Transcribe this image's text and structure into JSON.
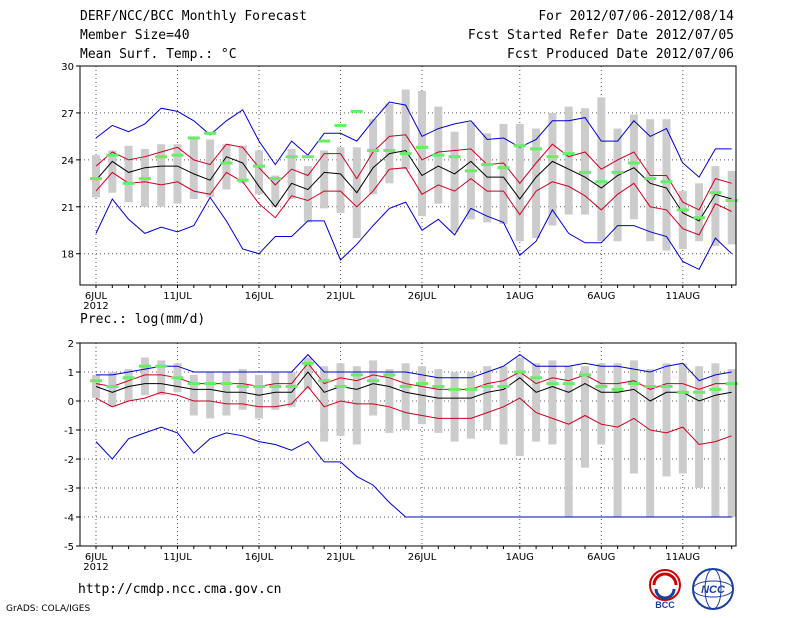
{
  "header": {
    "title": "DERF/NCC/BCC Monthly Forecast",
    "member_size": "Member Size=40",
    "variable1": "Mean Surf. Temp.: °C",
    "period": "For 2012/07/06-2012/08/14",
    "fcst_started": "Fcst Started Refer Date 2012/07/05",
    "fcst_produced": "Fcst Produced Date 2012/07/06"
  },
  "footer": {
    "url": "http://cmdp.ncc.cma.gov.cn",
    "credit": "GrADS: COLA/IGES",
    "logo_bcc": "BCC",
    "logo_ncc": "NCC"
  },
  "colors": {
    "max_min": "#0000cc",
    "spread": "#cc0022",
    "mean": "#000000",
    "members_bar": "#cccccc",
    "marker": "#66ee66",
    "grid": "#555555"
  },
  "chart_data": [
    {
      "type": "ensemble-line",
      "title": "Mean Surf. Temp.: °C",
      "ylim": [
        16,
        30
      ],
      "yticks": [
        18,
        21,
        24,
        27,
        30
      ],
      "xlabels": [
        "6JUL",
        "11JUL",
        "16JUL",
        "21JUL",
        "26JUL",
        "1AUG",
        "6AUG",
        "11AUG"
      ],
      "xlabel_days": [
        0,
        5,
        10,
        15,
        20,
        26,
        31,
        36
      ],
      "year_label": "2012",
      "days": 40,
      "series": {
        "max": [
          25.4,
          26.2,
          25.8,
          26.3,
          27.3,
          27.1,
          26.5,
          25.6,
          26.5,
          27.2,
          25.2,
          23.7,
          25.2,
          24.3,
          25.7,
          25.7,
          25.2,
          26.5,
          27.7,
          27.5,
          25.5,
          26.0,
          26.3,
          26.5,
          25.3,
          25.4,
          24.8,
          25.3,
          26.5,
          26.5,
          26.7,
          25.2,
          25.2,
          26.5,
          25.5,
          26.0,
          23.8,
          22.9,
          24.7,
          24.7
        ],
        "plus": [
          23.6,
          24.5,
          24.0,
          24.2,
          24.5,
          24.8,
          24.0,
          23.7,
          25.0,
          24.8,
          23.5,
          22.4,
          23.4,
          23.0,
          24.4,
          24.4,
          22.8,
          24.5,
          25.5,
          25.6,
          24.0,
          24.5,
          24.6,
          24.7,
          23.7,
          23.8,
          22.5,
          23.8,
          25.0,
          24.2,
          24.5,
          23.4,
          24.0,
          24.5,
          23.0,
          23.0,
          21.3,
          20.8,
          22.8,
          22.5
        ],
        "mean": [
          22.7,
          23.9,
          23.2,
          23.5,
          23.6,
          23.6,
          23.1,
          22.7,
          24.2,
          23.8,
          22.3,
          21.0,
          22.5,
          22.1,
          23.2,
          23.1,
          21.9,
          23.5,
          24.4,
          24.6,
          23.0,
          23.6,
          23.1,
          23.9,
          22.9,
          22.9,
          21.5,
          22.9,
          23.9,
          23.4,
          22.9,
          22.2,
          23.0,
          23.5,
          22.5,
          22.2,
          20.6,
          20.1,
          21.8,
          21.5
        ],
        "minus": [
          22.0,
          23.2,
          22.5,
          22.6,
          22.4,
          22.6,
          22.0,
          21.8,
          23.2,
          22.6,
          21.2,
          20.3,
          21.7,
          21.4,
          22.0,
          22.0,
          21.0,
          22.0,
          23.4,
          23.5,
          21.8,
          22.4,
          22.0,
          22.8,
          22.0,
          22.0,
          20.5,
          22.0,
          22.6,
          22.3,
          21.7,
          20.8,
          21.8,
          22.5,
          21.0,
          20.8,
          19.6,
          19.2,
          21.2,
          20.7
        ],
        "min": [
          19.3,
          21.5,
          20.2,
          19.3,
          19.7,
          19.4,
          19.8,
          21.6,
          20.1,
          18.3,
          18.0,
          19.1,
          19.1,
          20.1,
          20.1,
          17.6,
          18.6,
          19.8,
          20.9,
          21.3,
          19.5,
          20.2,
          19.2,
          20.9,
          20.4,
          20.0,
          17.9,
          18.8,
          20.8,
          19.3,
          18.7,
          18.7,
          19.8,
          19.8,
          19.4,
          19.1,
          17.5,
          17.0,
          19.0,
          18.0
        ],
        "bar_top": [
          24.3,
          24.6,
          24.9,
          24.7,
          25.0,
          25.0,
          25.5,
          25.3,
          25.0,
          24.9,
          24.6,
          23.0,
          24.7,
          23.6,
          24.6,
          24.8,
          24.8,
          26.6,
          27.6,
          28.5,
          28.4,
          27.4,
          25.8,
          26.4,
          25.7,
          26.3,
          26.3,
          26.0,
          27.0,
          27.4,
          27.3,
          28.0,
          26.0,
          26.9,
          26.6,
          26.6,
          22.0,
          22.5,
          23.6,
          23.3
        ],
        "bar_bot": [
          21.6,
          21.9,
          21.3,
          21.0,
          21.0,
          21.2,
          21.5,
          21.6,
          22.1,
          22.5,
          21.8,
          21.0,
          21.5,
          20.0,
          20.9,
          20.6,
          19.0,
          21.8,
          22.5,
          23.4,
          20.4,
          21.2,
          19.4,
          20.2,
          20.0,
          19.9,
          18.8,
          19.0,
          19.8,
          20.5,
          20.5,
          18.8,
          18.8,
          20.2,
          18.8,
          18.2,
          18.3,
          18.8,
          18.5,
          18.6
        ],
        "marker": [
          22.8,
          24.3,
          22.5,
          22.8,
          24.2,
          24.3,
          25.4,
          25.7,
          23.8,
          22.7,
          23.6,
          22.8,
          24.2,
          24.2,
          25.2,
          26.2,
          27.1,
          24.6,
          24.6,
          24.4,
          24.8,
          24.3,
          24.2,
          23.3,
          23.7,
          23.5,
          24.9,
          24.7,
          24.2,
          24.4,
          23.2,
          22.6,
          23.2,
          23.8,
          22.8,
          22.6,
          20.8,
          20.3,
          21.9,
          21.4
        ]
      }
    },
    {
      "type": "ensemble-line",
      "title": "Prec.: log(mm/d)",
      "ylim": [
        -5,
        2
      ],
      "yticks": [
        -5,
        -4,
        -3,
        -2,
        -1,
        0,
        1,
        2
      ],
      "xlabels": [
        "6JUL",
        "11JUL",
        "16JUL",
        "21JUL",
        "26JUL",
        "1AUG",
        "6AUG",
        "11AUG"
      ],
      "xlabel_days": [
        0,
        5,
        10,
        15,
        20,
        26,
        31,
        36
      ],
      "year_label": "2012",
      "days": 40,
      "series": {
        "max": [
          0.9,
          0.9,
          1.0,
          1.1,
          1.2,
          1.2,
          1.0,
          1.0,
          1.0,
          1.0,
          1.0,
          1.0,
          1.0,
          1.6,
          1.0,
          1.0,
          1.0,
          1.0,
          1.0,
          1.0,
          0.9,
          0.8,
          0.8,
          0.8,
          1.0,
          1.2,
          1.6,
          1.2,
          1.2,
          1.2,
          1.3,
          1.2,
          1.2,
          1.1,
          1.0,
          1.2,
          1.3,
          0.7,
          0.9,
          1.0
        ],
        "plus": [
          0.6,
          0.5,
          0.7,
          0.9,
          0.9,
          0.8,
          0.6,
          0.6,
          0.6,
          0.6,
          0.5,
          0.6,
          0.6,
          1.3,
          0.6,
          0.8,
          0.7,
          0.9,
          0.8,
          0.6,
          0.5,
          0.4,
          0.4,
          0.4,
          0.6,
          0.7,
          1.0,
          0.6,
          0.8,
          0.7,
          0.9,
          0.6,
          0.6,
          0.7,
          0.4,
          0.6,
          0.6,
          0.4,
          0.6,
          0.6
        ],
        "mean": [
          0.5,
          0.3,
          0.5,
          0.6,
          0.6,
          0.5,
          0.4,
          0.4,
          0.3,
          0.3,
          0.2,
          0.3,
          0.3,
          1.0,
          0.3,
          0.5,
          0.4,
          0.6,
          0.5,
          0.3,
          0.2,
          0.1,
          0.1,
          0.1,
          0.3,
          0.4,
          0.8,
          0.3,
          0.5,
          0.3,
          0.6,
          0.3,
          0.3,
          0.4,
          0.0,
          0.3,
          0.3,
          0.0,
          0.2,
          0.3
        ],
        "minus": [
          0.1,
          -0.2,
          0.0,
          0.1,
          0.3,
          0.2,
          0.0,
          0.0,
          -0.1,
          -0.1,
          -0.2,
          -0.2,
          -0.1,
          0.5,
          -0.2,
          0.0,
          -0.1,
          -0.1,
          -0.2,
          -0.4,
          -0.5,
          -0.6,
          -0.6,
          -0.6,
          -0.4,
          -0.2,
          0.1,
          -0.4,
          -0.6,
          -0.8,
          -0.5,
          -0.8,
          -0.9,
          -0.6,
          -1.0,
          -1.1,
          -0.9,
          -1.5,
          -1.4,
          -1.2
        ],
        "min": [
          -1.4,
          -2.0,
          -1.3,
          -1.1,
          -0.9,
          -1.1,
          -1.8,
          -1.3,
          -1.1,
          -1.2,
          -1.4,
          -1.5,
          -1.7,
          -1.4,
          -2.1,
          -2.1,
          -2.6,
          -2.9,
          -3.5,
          -4.0,
          -4.0,
          -4.0,
          -4.0,
          -4.0,
          -4.0,
          -4.0,
          -4.0,
          -4.0,
          -4.0,
          -4.0,
          -4.0,
          -4.0,
          -4.0,
          -4.0,
          -4.0,
          -4.0,
          -4.0,
          -4.0,
          -4.0,
          -4.0
        ],
        "bar_top": [
          0.9,
          1.0,
          1.1,
          1.5,
          1.4,
          1.3,
          0.9,
          1.0,
          1.0,
          1.1,
          0.9,
          1.0,
          1.0,
          1.5,
          1.2,
          1.3,
          1.2,
          1.4,
          1.1,
          1.3,
          1.2,
          1.1,
          1.0,
          1.0,
          1.2,
          1.2,
          1.5,
          1.3,
          1.4,
          1.2,
          1.2,
          1.3,
          1.3,
          1.4,
          1.1,
          1.3,
          1.3,
          1.2,
          1.3,
          1.1
        ],
        "bar_bot": [
          0.1,
          -0.2,
          0.0,
          0.2,
          0.2,
          0.3,
          -0.5,
          -0.6,
          -0.5,
          -0.3,
          -0.6,
          -0.3,
          -0.2,
          0.4,
          -1.4,
          -1.2,
          -1.5,
          -0.5,
          -1.1,
          -1.0,
          -0.8,
          -1.1,
          -1.4,
          -1.3,
          -1.0,
          -1.5,
          -1.9,
          -1.4,
          -1.5,
          -4.0,
          -2.3,
          -1.5,
          -4.0,
          -2.5,
          -4.0,
          -2.6,
          -2.5,
          -3.0,
          -4.0,
          -4.0
        ],
        "marker": [
          0.7,
          0.5,
          0.8,
          1.2,
          1.2,
          0.8,
          0.6,
          0.6,
          0.6,
          0.5,
          0.5,
          0.5,
          0.5,
          1.3,
          0.7,
          0.5,
          0.9,
          0.7,
          0.9,
          0.5,
          0.6,
          0.5,
          0.4,
          0.4,
          0.5,
          0.5,
          1.0,
          0.8,
          0.6,
          0.6,
          0.9,
          0.5,
          0.4,
          0.6,
          0.5,
          0.5,
          0.3,
          0.3,
          0.4,
          0.6
        ]
      }
    }
  ]
}
